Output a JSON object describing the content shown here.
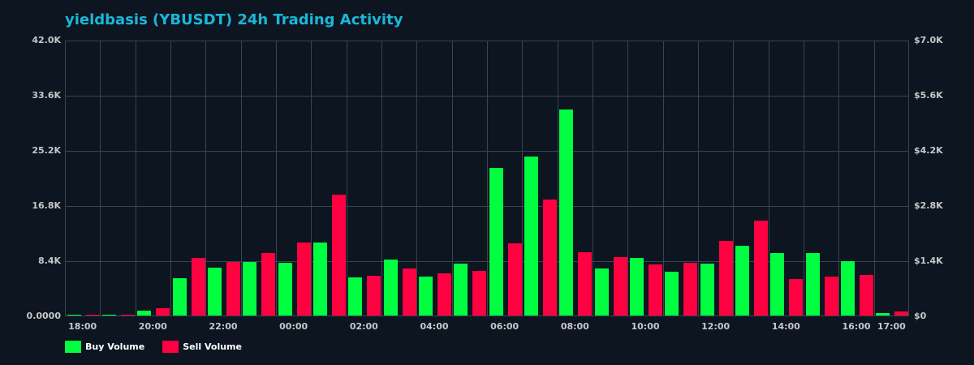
{
  "title": "yieldbasis (YBUSDT) 24h Trading Activity",
  "colors": {
    "background": "#0d1520",
    "title": "#1ab8d8",
    "grid": "#3a4350",
    "buy": "#00ff41",
    "sell": "#ff0040",
    "tick_text": "#c8c8c8"
  },
  "y_axis_left": {
    "ticks": [
      "42.0K",
      "33.6K",
      "25.2K",
      "16.8K",
      "8.4K",
      "0.0000"
    ]
  },
  "y_axis_right": {
    "ticks": [
      "$7.0K",
      "$5.6K",
      "$4.2K",
      "$2.8K",
      "$1.4K",
      "$0"
    ]
  },
  "x_axis": {
    "labels": [
      {
        "text": "18:00",
        "slot": 0
      },
      {
        "text": "20:00",
        "slot": 2
      },
      {
        "text": "22:00",
        "slot": 4
      },
      {
        "text": "00:00",
        "slot": 6
      },
      {
        "text": "02:00",
        "slot": 8
      },
      {
        "text": "04:00",
        "slot": 10
      },
      {
        "text": "06:00",
        "slot": 12
      },
      {
        "text": "08:00",
        "slot": 14
      },
      {
        "text": "10:00",
        "slot": 16
      },
      {
        "text": "12:00",
        "slot": 18
      },
      {
        "text": "14:00",
        "slot": 20
      },
      {
        "text": "16:00",
        "slot": 22
      },
      {
        "text": "17:00",
        "slot": 23
      }
    ]
  },
  "legend": {
    "buy_label": "Buy Volume",
    "sell_label": "Sell Volume"
  },
  "chart_data": {
    "type": "bar",
    "title": "yieldbasis (YBUSDT) 24h Trading Activity",
    "xlabel": "",
    "ylabel": "",
    "categories": [
      "18:00",
      "19:00",
      "20:00",
      "21:00",
      "22:00",
      "23:00",
      "00:00",
      "01:00",
      "02:00",
      "03:00",
      "04:00",
      "05:00",
      "06:00",
      "07:00",
      "08:00",
      "09:00",
      "10:00",
      "11:00",
      "12:00",
      "13:00",
      "14:00",
      "15:00",
      "16:00",
      "17:00"
    ],
    "series": [
      {
        "name": "Buy Volume",
        "color": "#00ff41",
        "values": [
          100,
          100,
          800,
          5740,
          7340,
          8200,
          8020,
          11100,
          5800,
          8500,
          5920,
          7900,
          22580,
          24300,
          31460,
          7160,
          8760,
          6660,
          7900,
          10610,
          9500,
          9500,
          8270,
          400
        ]
      },
      {
        "name": "Sell Volume",
        "color": "#ff0040",
        "values": [
          100,
          100,
          1170,
          8820,
          8200,
          9560,
          11100,
          18500,
          6050,
          7160,
          6420,
          6790,
          10980,
          17760,
          9620,
          8880,
          7770,
          8020,
          11350,
          14440,
          5550,
          5920,
          6170,
          620
        ]
      }
    ],
    "ylim": [
      0,
      42000
    ],
    "y2lim": [
      0,
      7000
    ],
    "y_ticks": [
      0,
      8400,
      16800,
      25200,
      33600,
      42000
    ],
    "y2_ticks": [
      "$0",
      "$1.4K",
      "$2.8K",
      "$4.2K",
      "$5.6K",
      "$7.0K"
    ],
    "grid": true,
    "legend_position": "bottom-left"
  }
}
